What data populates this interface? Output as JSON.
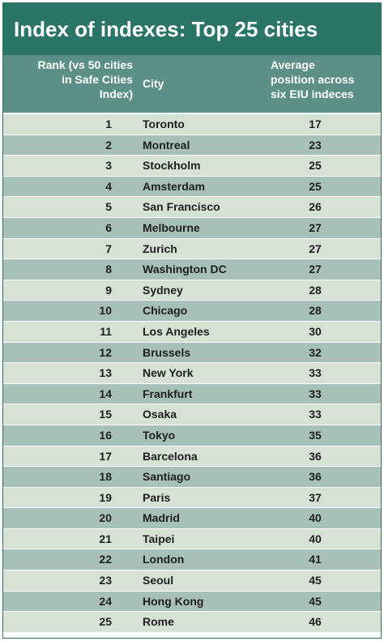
{
  "title": "Index of indexes: Top 25 cities",
  "chart_data": {
    "type": "table",
    "title": "Index of indexes: Top 25 cities",
    "columns": [
      "Rank (vs 50 cities\nin Safe Cities\nIndex)",
      "City",
      "Average\nposition across\nsix EIU indeces"
    ],
    "rows": [
      {
        "rank": "1",
        "city": "Toronto",
        "avg": "17"
      },
      {
        "rank": "2",
        "city": "Montreal",
        "avg": "23"
      },
      {
        "rank": "3",
        "city": "Stockholm",
        "avg": "25"
      },
      {
        "rank": "4",
        "city": "Amsterdam",
        "avg": "25"
      },
      {
        "rank": "5",
        "city": "San Francisco",
        "avg": "26"
      },
      {
        "rank": "6",
        "city": "Melbourne",
        "avg": "27"
      },
      {
        "rank": "7",
        "city": "Zurich",
        "avg": "27"
      },
      {
        "rank": "8",
        "city": "Washington DC",
        "avg": "27"
      },
      {
        "rank": "9",
        "city": "Sydney",
        "avg": "28"
      },
      {
        "rank": "10",
        "city": "Chicago",
        "avg": "28"
      },
      {
        "rank": "11",
        "city": "Los Angeles",
        "avg": "30"
      },
      {
        "rank": "12",
        "city": "Brussels",
        "avg": "32"
      },
      {
        "rank": "13",
        "city": "New York",
        "avg": "33"
      },
      {
        "rank": "14",
        "city": "Frankfurt",
        "avg": "33"
      },
      {
        "rank": "15",
        "city": "Osaka",
        "avg": "33"
      },
      {
        "rank": "16",
        "city": "Tokyo",
        "avg": "35"
      },
      {
        "rank": "17",
        "city": "Barcelona",
        "avg": "36"
      },
      {
        "rank": "18",
        "city": "Santiago",
        "avg": "36"
      },
      {
        "rank": "19",
        "city": "Paris",
        "avg": "37"
      },
      {
        "rank": "20",
        "city": "Madrid",
        "avg": "40"
      },
      {
        "rank": "21",
        "city": "Taipei",
        "avg": "40"
      },
      {
        "rank": "22",
        "city": "London",
        "avg": "41"
      },
      {
        "rank": "23",
        "city": "Seoul",
        "avg": "45"
      },
      {
        "rank": "24",
        "city": "Hong Kong",
        "avg": "45"
      },
      {
        "rank": "25",
        "city": "Rome",
        "avg": "46"
      }
    ]
  },
  "colors": {
    "title_bg": "#2b7566",
    "header_bg": "#5c8f86",
    "row_light": "#d6e2d4",
    "row_dark": "#a7c1b8",
    "text_dark": "#1e1e1e",
    "text_light": "#ffffff"
  }
}
